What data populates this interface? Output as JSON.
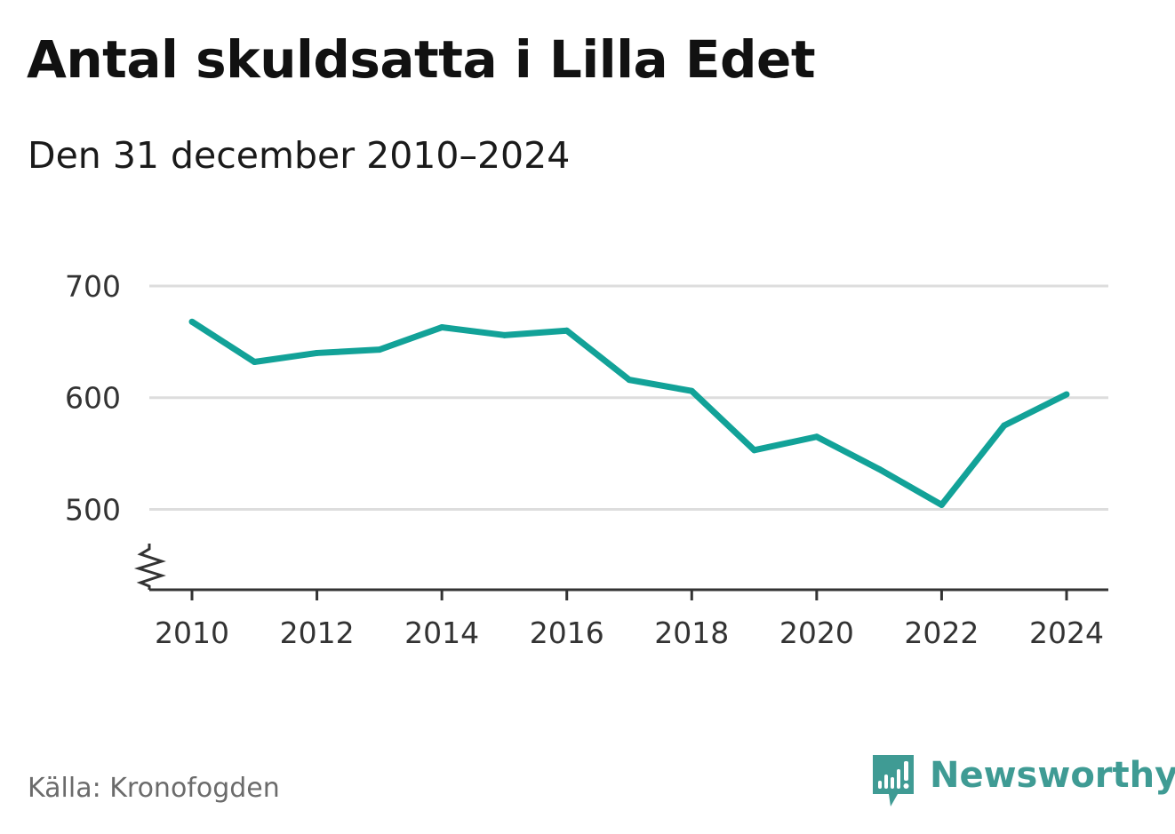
{
  "title": "Antal skuldsatta i Lilla Edet",
  "subtitle": "Den 31 december 2010–2024",
  "source": "Källa: Kronofogden",
  "brand": {
    "name": "Newsworthy",
    "icon": "newsworthy-logo-icon"
  },
  "colors": {
    "line": "#12a298",
    "grid": "#dddddd",
    "axis": "#333333",
    "brand": "#3f9b94"
  },
  "chart_data": {
    "type": "line",
    "title": "Antal skuldsatta i Lilla Edet",
    "subtitle": "Den 31 december 2010–2024",
    "xlabel": "",
    "ylabel": "",
    "x": [
      2010,
      2011,
      2012,
      2013,
      2014,
      2015,
      2016,
      2017,
      2018,
      2019,
      2020,
      2021,
      2022,
      2023,
      2024
    ],
    "series": [
      {
        "name": "Antal skuldsatta",
        "values": [
          668,
          632,
          640,
          643,
          663,
          656,
          660,
          616,
          606,
          553,
          565,
          536,
          504,
          575,
          603
        ]
      }
    ],
    "ylim": [
      428,
      700
    ],
    "xlim": [
      2009.65,
      2024.35
    ],
    "y_ticks": [
      {
        "value": 500,
        "label": "500"
      },
      {
        "value": 600,
        "label": "600"
      },
      {
        "value": 700,
        "label": "700"
      }
    ],
    "x_ticks": [
      {
        "value": 2010,
        "label": "2010"
      },
      {
        "value": 2012,
        "label": "2012"
      },
      {
        "value": 2014,
        "label": "2014"
      },
      {
        "value": 2016,
        "label": "2016"
      },
      {
        "value": 2018,
        "label": "2018"
      },
      {
        "value": 2020,
        "label": "2020"
      },
      {
        "value": 2022,
        "label": "2022"
      },
      {
        "value": 2024,
        "label": "2024"
      }
    ],
    "grid": true,
    "axis_break": true,
    "legend": "none"
  }
}
